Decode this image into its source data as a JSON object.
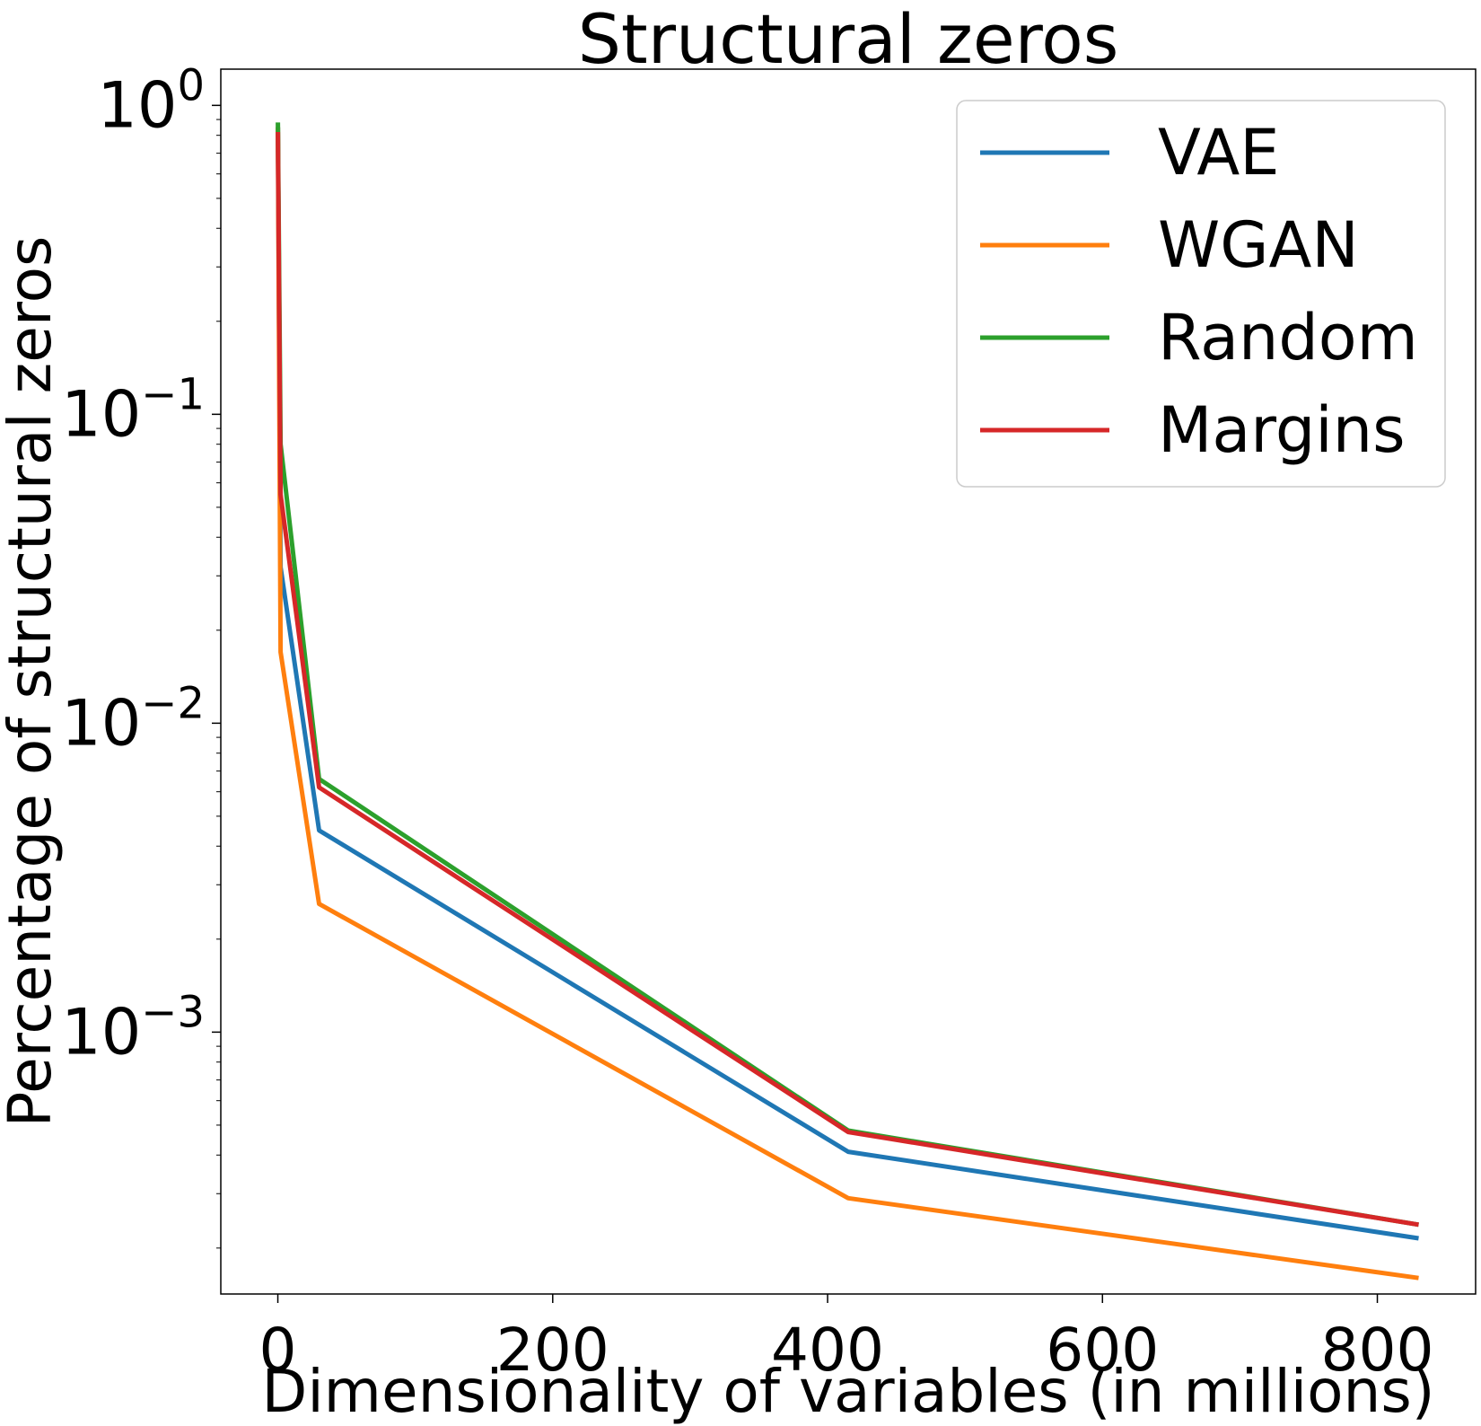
{
  "chart_data": {
    "type": "line",
    "title": "Structural zeros",
    "xlabel": "Dimensionality of variables (in millions)",
    "ylabel": "Percentage of structural zeros",
    "xscale": "linear",
    "yscale": "log",
    "xlim": [
      -41.5,
      871.5
    ],
    "ylim": [
      0.000142,
      1.31
    ],
    "x_ticks": [
      0,
      200,
      400,
      600,
      800
    ],
    "x_tick_labels": [
      "0",
      "200",
      "400",
      "600",
      "800"
    ],
    "y_ticks": [
      {
        "value": 1,
        "base": "10",
        "exp": "0"
      },
      {
        "value": 0.1,
        "base": "10",
        "exp": "−1"
      },
      {
        "value": 0.01,
        "base": "10",
        "exp": "−2"
      },
      {
        "value": 0.001,
        "base": "10",
        "exp": "−3"
      }
    ],
    "grid": false,
    "legend_position": "top-right",
    "x": [
      0.01,
      2,
      30,
      415,
      830
    ],
    "series": [
      {
        "name": "VAE",
        "color": "#1f77b4",
        "values": [
          0.85,
          0.032,
          0.0045,
          0.00041,
          0.000215
        ]
      },
      {
        "name": "WGAN",
        "color": "#ff7f0e",
        "values": [
          0.85,
          0.017,
          0.0026,
          0.00029,
          0.00016
        ]
      },
      {
        "name": "Random",
        "color": "#2ca02c",
        "values": [
          0.88,
          0.08,
          0.0066,
          0.00048,
          0.000238
        ]
      },
      {
        "name": "Margins",
        "color": "#d62728",
        "values": [
          0.82,
          0.055,
          0.0062,
          0.000475,
          0.000238
        ]
      }
    ]
  }
}
